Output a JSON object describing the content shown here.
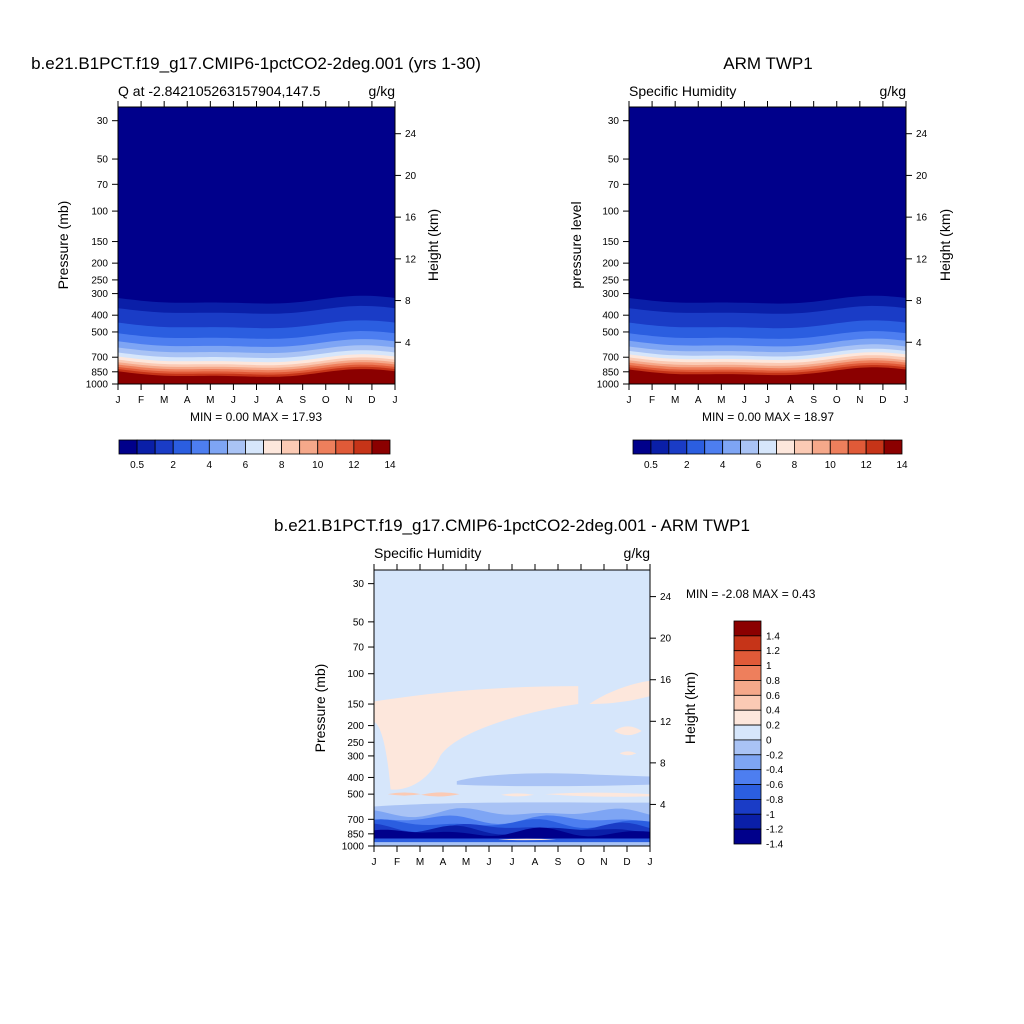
{
  "panels": [
    {
      "id": "model",
      "title": "b.e21.B1PCT.f19_g17.CMIP6-1pctCO2-2deg.001 (yrs 1-30)",
      "left_label": "Q at -2.842105263157904,147.5",
      "units": "g/kg",
      "ylabel": "Pressure (mb)",
      "ylabel_right": "Height (km)",
      "stats": "MIN =   0.00 MAX =   17.93",
      "colorbar_labels": [
        "0.5",
        "2",
        "4",
        "6",
        "8",
        "10",
        "12",
        "14"
      ]
    },
    {
      "id": "obs",
      "title": "ARM TWP1",
      "left_label": "Specific Humidity",
      "units": "g/kg",
      "ylabel": "pressure level",
      "ylabel_right": "Height (km)",
      "stats": "MIN =   0.00 MAX =   18.97",
      "colorbar_labels": [
        "0.5",
        "2",
        "4",
        "6",
        "8",
        "10",
        "12",
        "14"
      ]
    },
    {
      "id": "diff",
      "title": "b.e21.B1PCT.f19_g17.CMIP6-1pctCO2-2deg.001 - ARM TWP1",
      "left_label": "Specific Humidity",
      "units": "g/kg",
      "ylabel": "Pressure (mb)",
      "ylabel_right": "Height (km)",
      "stats": "MIN =  -2.08 MAX =    0.43",
      "colorbar_labels": [
        "1.4",
        "1.2",
        "1",
        "0.8",
        "0.6",
        "0.4",
        "0.2",
        "0",
        "-0.2",
        "-0.4",
        "-0.6",
        "-0.8",
        "-1",
        "-1.2",
        "-1.4"
      ]
    }
  ],
  "chart_data": [
    {
      "type": "heatmap",
      "title": "b.e21.B1PCT.f19_g17.CMIP6-1pctCO2-2deg.001 (yrs 1-30)",
      "variable": "Q at -2.842105263157904,147.5",
      "units": "g/kg",
      "xlabel": "",
      "x": [
        "J",
        "F",
        "M",
        "A",
        "M",
        "J",
        "J",
        "A",
        "S",
        "O",
        "N",
        "D",
        "J"
      ],
      "ylabel": "Pressure (mb)",
      "y_ticks": [
        30,
        50,
        70,
        100,
        150,
        200,
        250,
        300,
        400,
        500,
        700,
        850,
        1000
      ],
      "ylim": [
        1000,
        25
      ],
      "y2label": "Height (km)",
      "y2_ticks": [
        4,
        8,
        12,
        16,
        20,
        24
      ],
      "scale": "log-pressure",
      "min": 0.0,
      "max": 17.93,
      "levels": [
        0.5,
        1,
        2,
        3,
        4,
        5,
        6,
        7,
        8,
        9,
        10,
        11,
        12,
        13,
        14
      ],
      "profile": [
        {
          "p": 100,
          "q": 0.0
        },
        {
          "p": 280,
          "q": 0.1
        },
        {
          "p": 320,
          "q": 0.4
        },
        {
          "p": 360,
          "q": 0.8
        },
        {
          "p": 420,
          "q": 1.5
        },
        {
          "p": 480,
          "q": 2.3
        },
        {
          "p": 540,
          "q": 3.2
        },
        {
          "p": 600,
          "q": 4.2
        },
        {
          "p": 650,
          "q": 5.3
        },
        {
          "p": 700,
          "q": 6.4
        },
        {
          "p": 750,
          "q": 8.0
        },
        {
          "p": 800,
          "q": 10.0
        },
        {
          "p": 850,
          "q": 12.0
        },
        {
          "p": 900,
          "q": 14.0
        },
        {
          "p": 950,
          "q": 15.8
        },
        {
          "p": 1000,
          "q": 17.5
        }
      ]
    },
    {
      "type": "heatmap",
      "title": "ARM TWP1",
      "variable": "Specific Humidity",
      "units": "g/kg",
      "xlabel": "",
      "x": [
        "J",
        "F",
        "M",
        "A",
        "M",
        "J",
        "J",
        "A",
        "S",
        "O",
        "N",
        "D",
        "J"
      ],
      "ylabel": "pressure level",
      "y_ticks": [
        30,
        50,
        70,
        100,
        150,
        200,
        250,
        300,
        400,
        500,
        700,
        850,
        1000
      ],
      "ylim": [
        1000,
        25
      ],
      "y2label": "Height (km)",
      "y2_ticks": [
        4,
        8,
        12,
        16,
        20,
        24
      ],
      "scale": "log-pressure",
      "min": 0.0,
      "max": 18.97,
      "levels": [
        0.5,
        1,
        2,
        3,
        4,
        5,
        6,
        7,
        8,
        9,
        10,
        11,
        12,
        13,
        14
      ],
      "profile": [
        {
          "p": 100,
          "q": 0.0
        },
        {
          "p": 280,
          "q": 0.1
        },
        {
          "p": 320,
          "q": 0.4
        },
        {
          "p": 360,
          "q": 0.8
        },
        {
          "p": 420,
          "q": 1.5
        },
        {
          "p": 480,
          "q": 2.3
        },
        {
          "p": 540,
          "q": 3.2
        },
        {
          "p": 600,
          "q": 4.3
        },
        {
          "p": 650,
          "q": 5.5
        },
        {
          "p": 700,
          "q": 7.0
        },
        {
          "p": 750,
          "q": 8.8
        },
        {
          "p": 800,
          "q": 10.8
        },
        {
          "p": 850,
          "q": 12.8
        },
        {
          "p": 900,
          "q": 14.8
        },
        {
          "p": 950,
          "q": 16.8
        },
        {
          "p": 1000,
          "q": 18.5
        }
      ]
    },
    {
      "type": "heatmap",
      "title": "b.e21.B1PCT.f19_g17.CMIP6-1pctCO2-2deg.001 - ARM TWP1",
      "variable": "Specific Humidity",
      "units": "g/kg",
      "xlabel": "",
      "x": [
        "J",
        "F",
        "M",
        "A",
        "M",
        "J",
        "J",
        "A",
        "S",
        "O",
        "N",
        "D",
        "J"
      ],
      "ylabel": "Pressure (mb)",
      "y_ticks": [
        30,
        50,
        70,
        100,
        150,
        200,
        250,
        300,
        400,
        500,
        700,
        850,
        1000
      ],
      "ylim": [
        1000,
        25
      ],
      "y2label": "Height (km)",
      "y2_ticks": [
        4,
        8,
        12,
        16,
        20,
        24
      ],
      "scale": "log-pressure",
      "min": -2.08,
      "max": 0.43,
      "levels": [
        -1.4,
        -1.2,
        -1,
        -0.8,
        -0.6,
        -0.4,
        -0.2,
        0,
        0.2,
        0.4,
        0.6,
        0.8,
        1,
        1.2,
        1.4
      ]
    }
  ],
  "palettes": {
    "sequential": [
      "#00008b",
      "#0a1fa8",
      "#1a3cc6",
      "#2b5ee0",
      "#4d7ef0",
      "#7ea5f4",
      "#a9c3f5",
      "#d6e6fb",
      "#fde7dc",
      "#fbcab4",
      "#f5a88a",
      "#ee7f5c",
      "#e05a38",
      "#c63418",
      "#8b0000"
    ],
    "diverging": [
      "#00008b",
      "#0a1fa8",
      "#1a3cc6",
      "#2b5ee0",
      "#4d7ef0",
      "#7ea5f4",
      "#a9c3f5",
      "#d6e6fb",
      "#fde7dc",
      "#fbcab4",
      "#f5a88a",
      "#ee7f5c",
      "#e05a38",
      "#c63418",
      "#8b0000"
    ],
    "diff_background": "#d6e6fb",
    "diff_positive_light": "#fde7dc",
    "diff_positive_mid": "#fbcab4"
  }
}
